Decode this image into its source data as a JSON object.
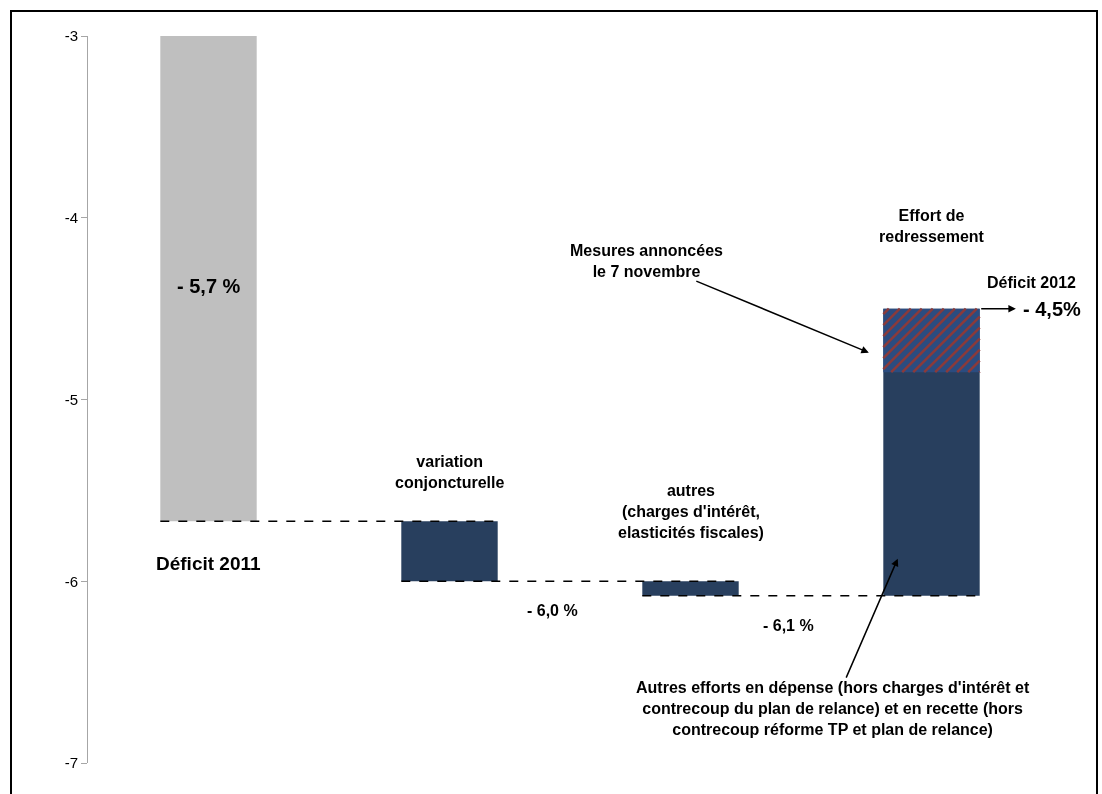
{
  "chart_data": {
    "type": "bar",
    "categories": [
      null,
      null,
      null,
      null
    ],
    "base": [
      -3,
      -5.67,
      -6.0,
      -6.08
    ],
    "colors": [
      "#bfbfbf",
      "#283f5e",
      "#283f5e",
      "#283f5e"
    ],
    "values": [
      -2.67,
      -0.33,
      -0.08,
      1.58
    ],
    "bands": [
      {
        "axis": "y",
        "from": -4.85,
        "to": -4.5,
        "color": "#2b4c80"
      }
    ],
    "ylim": [
      -7,
      -3
    ],
    "yticks": [
      -7,
      -6,
      -5,
      -4,
      -3
    ],
    "annotations": [
      "Déficit 2011",
      "variation\nconjoncturelle",
      "autres\n(charges d'intérêt,\nelasticités fiscales)",
      "Effort de\nredressement",
      "- 5,7 %",
      "- 6,0 %",
      "- 6,1 %",
      "- 4,5%",
      "Déficit 2012",
      "Mesures annoncées\nle 7 novembre",
      "Autres efforts en dépense (hors charges d'intérêt et\ncontrecoup du plan de relance) et en recette (hors\ncontrecoup réforme TP et plan de relance)"
    ]
  }
}
